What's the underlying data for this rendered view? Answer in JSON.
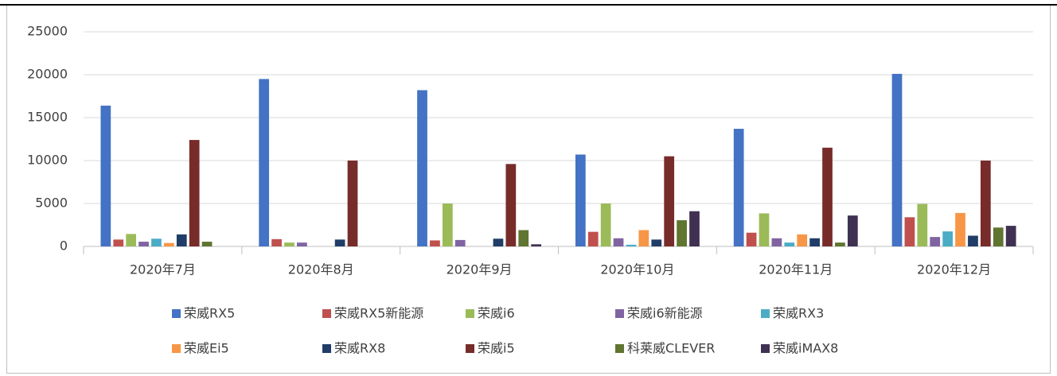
{
  "chart_data": {
    "type": "bar",
    "categories": [
      "2020年7月",
      "2020年8月",
      "2020年9月",
      "2020年10月",
      "2020年11月",
      "2020年12月"
    ],
    "series": [
      {
        "name": "荣威RX5",
        "color": "#4472c4",
        "values": [
          16400,
          19500,
          18200,
          10700,
          13700,
          20100
        ]
      },
      {
        "name": "荣威RX5新能源",
        "color": "#c0504d",
        "values": [
          800,
          850,
          700,
          1700,
          1600,
          3400
        ]
      },
      {
        "name": "荣威i6",
        "color": "#9bbb59",
        "values": [
          1450,
          450,
          5000,
          5000,
          3850,
          4950
        ]
      },
      {
        "name": "荣威i6新能源",
        "color": "#8064a2",
        "values": [
          550,
          450,
          750,
          950,
          950,
          1100
        ]
      },
      {
        "name": "荣威RX3",
        "color": "#4bacc6",
        "values": [
          900,
          0,
          0,
          200,
          450,
          1750
        ]
      },
      {
        "name": "荣威Ei5",
        "color": "#f79646",
        "values": [
          400,
          0,
          0,
          1900,
          1400,
          3900
        ]
      },
      {
        "name": "荣威RX8",
        "color": "#1f3d66",
        "values": [
          1400,
          800,
          900,
          800,
          950,
          1250
        ]
      },
      {
        "name": "荣威i5",
        "color": "#772c2a",
        "values": [
          12400,
          10000,
          9600,
          10500,
          11500,
          10000
        ]
      },
      {
        "name": "科莱威CLEVER",
        "color": "#5f7530",
        "values": [
          550,
          0,
          1900,
          3050,
          450,
          2200
        ]
      },
      {
        "name": "荣威iMAX8",
        "color": "#403152",
        "values": [
          0,
          0,
          250,
          4100,
          3600,
          2400
        ]
      }
    ],
    "ylim": [
      0,
      25000
    ],
    "yticks": [
      0,
      5000,
      10000,
      15000,
      20000,
      25000
    ],
    "grid": true,
    "legend": "bottom"
  }
}
